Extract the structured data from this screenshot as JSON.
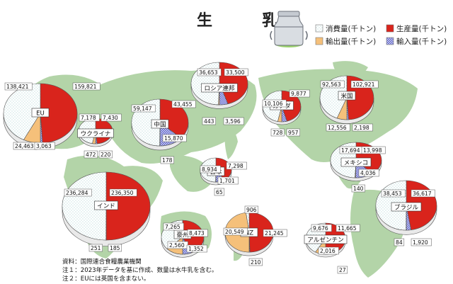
{
  "title": "生　乳",
  "colors": {
    "production": "#d9241c",
    "consumption": "#ffffff",
    "export": "#f5c07a",
    "import": "#5a5fc2",
    "map": "#b3d4a8",
    "edge": "#555555"
  },
  "legend": [
    {
      "key": "consumption",
      "label": "消費量(千トン)"
    },
    {
      "key": "production",
      "label": "生産量(千トン)"
    },
    {
      "key": "export",
      "label": "輸出量(千トン)"
    },
    {
      "key": "import",
      "label": "輸入量(千トン)"
    }
  ],
  "notes": [
    "資料：国際連合食糧農業機関",
    "注１：2023年データを基に作成、数量は水牛乳を含む。",
    "注２：EUには英国を含まない。"
  ],
  "chart_data": {
    "type": "pie",
    "title": "生　乳",
    "series_order": [
      "production",
      "import",
      "export",
      "consumption"
    ],
    "pies": [
      {
        "name": "EU",
        "consumption": "138,421",
        "production": "159,821",
        "export": "24,463",
        "import": "3,063"
      },
      {
        "name": "ウクライナ",
        "consumption": "7,178",
        "production": "7,430",
        "export": "472",
        "import": "220"
      },
      {
        "name": "中国",
        "consumption": "59,147",
        "production": "43,455",
        "export": "178",
        "import": "15,870"
      },
      {
        "name": "ロシア連邦",
        "consumption": "36,653",
        "production": "33,500",
        "export": "443",
        "import": "3,596"
      },
      {
        "name": "カナダ",
        "consumption": "10,106",
        "production": "9,877",
        "export": "728",
        "import": "957"
      },
      {
        "name": "米国",
        "consumption": "92,563",
        "production": "102,921",
        "export": "12,556",
        "import": "2,198"
      },
      {
        "name": "日本",
        "consumption": "8,934",
        "production": "7,298",
        "export": "65",
        "import": "1,701"
      },
      {
        "name": "メキシコ",
        "consumption": "17,694",
        "production": "13,998",
        "export": "140",
        "import": "4,036"
      },
      {
        "name": "インド",
        "consumption": "236,284",
        "production": "236,350",
        "export": "251",
        "import": "185"
      },
      {
        "name": "豪州",
        "consumption": "7,265",
        "production": "8,473",
        "export": "2,560",
        "import": "1,352"
      },
      {
        "name": "NZ",
        "consumption": "906",
        "production": "21,245",
        "export": "20,549",
        "import": "210"
      },
      {
        "name": "アルゼンチン",
        "consumption": "9,676",
        "production": "11,665",
        "export": "2,016",
        "import": "27"
      },
      {
        "name": "ブラジル",
        "consumption": "38,453",
        "production": "36,617",
        "export": "84",
        "import": "1,920"
      }
    ]
  }
}
